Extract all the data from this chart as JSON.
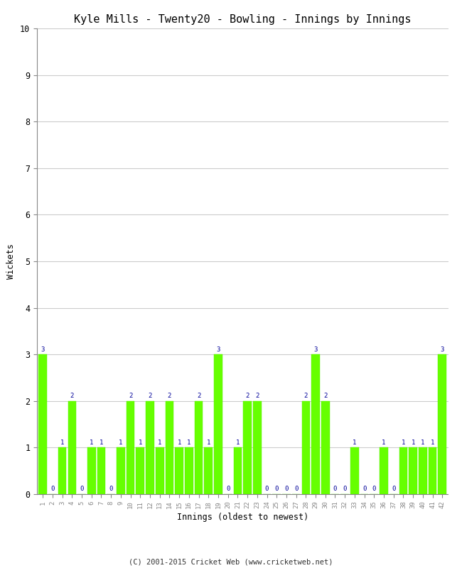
{
  "title": "Kyle Mills - Twenty20 - Bowling - Innings by Innings",
  "xlabel": "Innings (oldest to newest)",
  "ylabel": "Wickets",
  "copyright": "(C) 2001-2015 Cricket Web (www.cricketweb.net)",
  "bar_color": "#66ff00",
  "bar_edge_color": "#55ee00",
  "label_color": "#000099",
  "background_color": "#ffffff",
  "grid_color": "#cccccc",
  "ylim": [
    0,
    10
  ],
  "yticks": [
    0,
    1,
    2,
    3,
    4,
    5,
    6,
    7,
    8,
    9,
    10
  ],
  "categories": [
    "1",
    "2",
    "3",
    "4",
    "5",
    "6",
    "7",
    "8",
    "9",
    "10",
    "11",
    "12",
    "13",
    "14",
    "15",
    "16",
    "17",
    "18",
    "19",
    "20",
    "21",
    "22",
    "23",
    "24",
    "25",
    "26",
    "27",
    "28",
    "29",
    "30",
    "31",
    "32",
    "33",
    "34",
    "35",
    "36",
    "37",
    "38",
    "39",
    "40",
    "41",
    "42"
  ],
  "values": [
    3,
    0,
    1,
    2,
    0,
    1,
    1,
    0,
    1,
    2,
    1,
    2,
    1,
    2,
    1,
    1,
    2,
    1,
    3,
    0,
    1,
    2,
    2,
    0,
    0,
    0,
    0,
    2,
    3,
    2,
    0,
    0,
    1,
    0,
    0,
    1,
    0,
    1,
    1,
    1,
    1,
    3
  ]
}
